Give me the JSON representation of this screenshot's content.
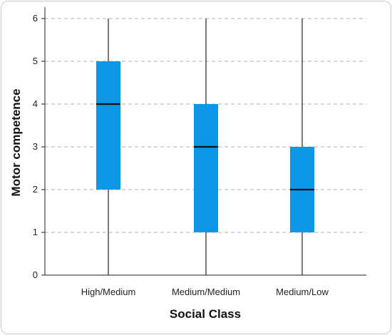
{
  "chart_data": {
    "type": "boxplot",
    "title": "",
    "xlabel": "Social Class",
    "ylabel": "Motor competence",
    "categories": [
      "High/Medium",
      "Medium/Medium",
      "Medium/Low"
    ],
    "boxes": [
      {
        "category": "High/Medium",
        "min": 0,
        "q1": 2,
        "median": 4,
        "q3": 5,
        "max": 6
      },
      {
        "category": "Medium/Medium",
        "min": 0,
        "q1": 1,
        "median": 3,
        "q3": 4,
        "max": 6
      },
      {
        "category": "Medium/Low",
        "min": 0,
        "q1": 1,
        "median": 2,
        "q3": 3,
        "max": 6
      }
    ],
    "ylim": [
      0,
      6
    ],
    "yticks": [
      "0",
      "1",
      "2",
      "3",
      "4",
      "5",
      "6"
    ],
    "grid": "horizontal dashed",
    "colors": {
      "box": "#0b96e6",
      "median": "#111111",
      "whisker": "#222222",
      "grid": "#b0b0b0"
    }
  }
}
